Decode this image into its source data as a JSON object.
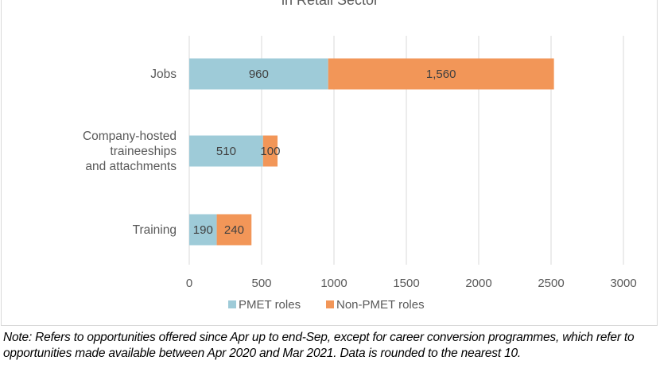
{
  "chart_data": {
    "type": "bar",
    "orientation": "horizontal",
    "stacked": true,
    "title": "in Retail Sector",
    "categories": [
      "Jobs",
      "Company-hosted traineeships and attachments",
      "Training"
    ],
    "category_lines": [
      [
        "Jobs"
      ],
      [
        "Company-hosted",
        "traineeships",
        "and attachments"
      ],
      [
        "Training"
      ]
    ],
    "series": [
      {
        "name": "PMET roles",
        "color": "#9ecbd8",
        "values": [
          960,
          510,
          190
        ],
        "labels": [
          "960",
          "510",
          "190"
        ]
      },
      {
        "name": "Non-PMET roles",
        "color": "#f29658",
        "values": [
          1560,
          100,
          240
        ],
        "labels": [
          "1,560",
          "100",
          "240"
        ]
      }
    ],
    "xlim": [
      0,
      3000
    ],
    "xticks": [
      0,
      500,
      1000,
      1500,
      2000,
      2500,
      3000
    ],
    "grid": true,
    "legend": "bottom"
  },
  "note": "Note: Refers to opportunities offered since Apr up to end-Sep, except for career conversion programmes, which refer to opportunities made available between Apr 2020 and Mar 2021. Data is rounded to the nearest 10."
}
